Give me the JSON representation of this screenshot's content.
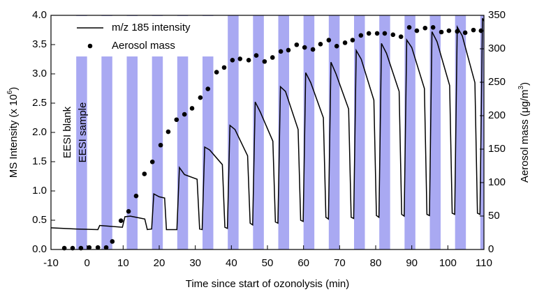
{
  "chart_data": {
    "type": "line_scatter_dual",
    "xlabel": "Time since start of ozonolysis (min)",
    "ylabel": {
      "text": "MS Intensity (x 10",
      "sup": "6",
      "end": ")"
    },
    "y2label": {
      "text": "Aerosol mass (μg/m",
      "sup": "3",
      "end": ")"
    },
    "annotations": [
      "EESI blank",
      "EESI sample"
    ],
    "band_color": "#a9a9f2",
    "sample_periods": [
      [
        -3,
        0
      ],
      [
        4,
        7
      ],
      [
        11,
        14
      ],
      [
        18,
        21
      ],
      [
        25,
        28
      ],
      [
        32,
        35
      ],
      [
        39,
        42
      ],
      [
        46,
        49
      ],
      [
        53,
        56
      ],
      [
        60,
        63
      ],
      [
        67,
        70
      ],
      [
        74,
        77
      ],
      [
        81,
        84
      ],
      [
        88,
        91
      ],
      [
        95,
        98
      ],
      [
        102,
        105
      ],
      [
        109,
        110
      ]
    ],
    "xlim": [
      -10,
      110
    ],
    "xticks": [
      -10,
      0,
      10,
      20,
      30,
      40,
      50,
      60,
      70,
      80,
      90,
      100,
      110
    ],
    "ylim": [
      0,
      4
    ],
    "yticks": [
      {
        "value": 0,
        "label": "0.0"
      },
      {
        "value": 0.5,
        "label": "0.5"
      },
      {
        "value": 1,
        "label": "1.0"
      },
      {
        "value": 1.5,
        "label": "1.5"
      },
      {
        "value": 2,
        "label": "2.0"
      },
      {
        "value": 2.5,
        "label": "2.5"
      },
      {
        "value": 3,
        "label": "3.0"
      },
      {
        "value": 3.5,
        "label": "3.5"
      },
      {
        "value": 4,
        "label": "4.0"
      }
    ],
    "y2lim": [
      0,
      350
    ],
    "y2ticks": [
      0,
      50,
      100,
      150,
      200,
      250,
      300,
      350
    ],
    "series": [
      {
        "name": "m/z 185 intensity",
        "kind": "line",
        "color": "#000000",
        "x": [
          -10,
          -3,
          3,
          3.5,
          9.8,
          10.5,
          12,
          16,
          16.7,
          17.9,
          18.5,
          20,
          21.5,
          22,
          24.9,
          25.6,
          27,
          30.5,
          31.2,
          31.9,
          32.6,
          34,
          37.5,
          38.2,
          38.9,
          39.6,
          41,
          44.5,
          45.2,
          45.9,
          46.6,
          48,
          51.5,
          52.2,
          52.9,
          53.6,
          55,
          58.5,
          59.2,
          59.9,
          60.6,
          62,
          65.5,
          66.2,
          66.9,
          67.6,
          69,
          72.5,
          73.2,
          73.9,
          74.6,
          76,
          79.5,
          80.2,
          80.9,
          81.6,
          83,
          86.5,
          87.2,
          87.9,
          88.6,
          90,
          93.5,
          94.2,
          94.9,
          95.6,
          97,
          100.5,
          101.2,
          101.9,
          102.6,
          104,
          107.5,
          108.2,
          108.9,
          109.6,
          110
        ],
        "values": [
          0.37,
          0.35,
          0.34,
          0.41,
          0.38,
          0.56,
          0.57,
          0.52,
          0.34,
          0.35,
          0.95,
          0.9,
          0.88,
          0.34,
          0.34,
          1.4,
          1.28,
          1.2,
          0.35,
          0.34,
          1.75,
          1.7,
          1.45,
          0.38,
          0.36,
          2.12,
          2.05,
          1.6,
          0.45,
          0.42,
          2.52,
          2.35,
          1.85,
          0.47,
          0.45,
          2.78,
          2.7,
          2.05,
          0.5,
          0.48,
          3.02,
          2.85,
          2.25,
          0.55,
          0.52,
          3.2,
          3.0,
          2.4,
          0.55,
          0.53,
          3.4,
          3.25,
          2.55,
          0.58,
          0.55,
          3.52,
          3.35,
          2.7,
          0.6,
          0.57,
          3.58,
          3.45,
          2.75,
          0.6,
          0.58,
          3.72,
          3.55,
          2.8,
          0.62,
          0.6,
          3.8,
          3.65,
          2.85,
          0.62,
          0.6,
          3.95,
          3.9
        ]
      },
      {
        "name": "Aerosol mass",
        "kind": "scatter",
        "axis": "y2",
        "color": "#000000",
        "x": [
          -6.3,
          -4,
          -1.7,
          0.6,
          3,
          5.3,
          7,
          9.4,
          11.5,
          13.6,
          15.9,
          18.1,
          20.4,
          22.5,
          24.8,
          27,
          29.1,
          31.4,
          33.5,
          35.9,
          38,
          40.3,
          42.4,
          44.8,
          46.9,
          49.2,
          51.4,
          53.7,
          55.8,
          58.1,
          60.3,
          62.6,
          64.7,
          67,
          69.2,
          71.5,
          73.6,
          75.9,
          78.1,
          80.4,
          82.5,
          84.8,
          87,
          89.3,
          91.4,
          93.7,
          95.9,
          98.2,
          100.3,
          102.6,
          104.8,
          107.1,
          109.2
        ],
        "values": [
          2,
          2,
          2,
          3,
          3,
          3,
          12,
          43,
          57,
          80,
          113,
          131,
          156,
          176,
          194,
          202,
          211,
          227,
          240,
          265,
          272,
          283,
          285,
          283,
          290,
          281,
          287,
          296,
          298,
          306,
          302,
          299,
          307,
          313,
          304,
          309,
          313,
          320,
          323,
          323,
          323,
          321,
          318,
          332,
          327,
          331,
          332,
          325,
          327,
          326,
          324,
          328,
          327
        ]
      }
    ]
  }
}
